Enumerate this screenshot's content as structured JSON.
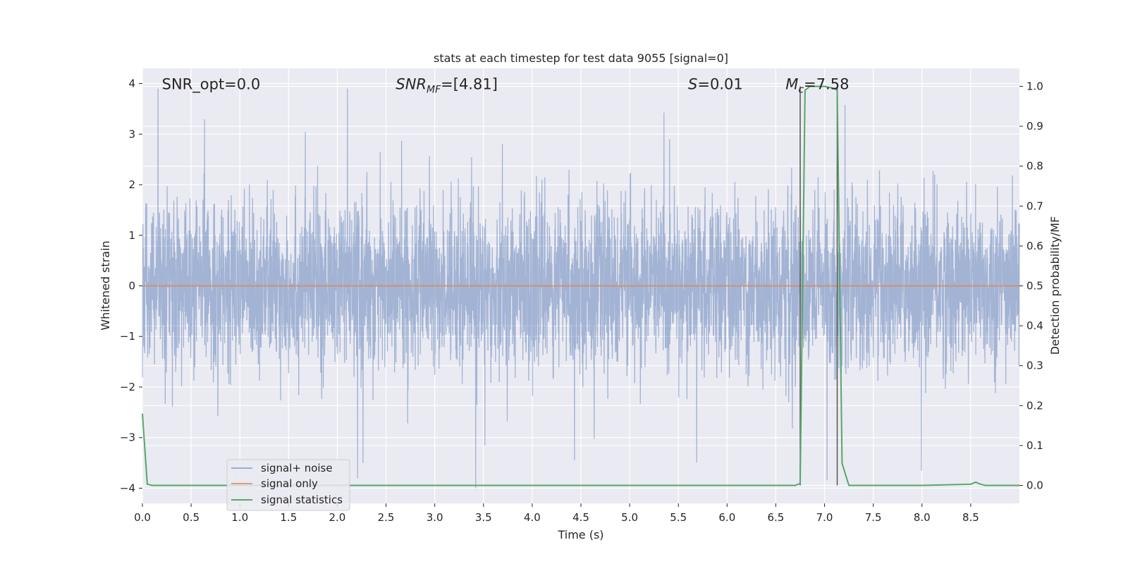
{
  "chart_data": {
    "type": "line",
    "title": "stats at each timestep for test data 9055 [signal=0]",
    "xlabel": "Time (s)",
    "ylabel_left": "Whitened strain",
    "ylabel_right": "Detection probability/MF",
    "xlim": [
      0.0,
      9.0
    ],
    "ylim_left": [
      -4.3,
      4.3
    ],
    "ylim_right": [
      -0.045,
      1.045
    ],
    "x_ticks": [
      "0.0",
      "0.5",
      "1.0",
      "1.5",
      "2.0",
      "2.5",
      "3.0",
      "3.5",
      "4.0",
      "4.5",
      "5.0",
      "5.5",
      "6.0",
      "6.5",
      "7.0",
      "7.5",
      "8.0",
      "8.5"
    ],
    "y_left_ticks": [
      "−4",
      "−3",
      "−2",
      "−1",
      "0",
      "1",
      "2",
      "3",
      "4"
    ],
    "y_right_ticks": [
      "0.0",
      "0.1",
      "0.2",
      "0.3",
      "0.4",
      "0.5",
      "0.6",
      "0.7",
      "0.8",
      "0.9",
      "1.0"
    ],
    "grid": true,
    "annotations": [
      {
        "text": "SNR_opt=0.0",
        "x": 0.2,
        "y": 4.0
      },
      {
        "text": "SNR_MF=[4.81]",
        "x": 2.6,
        "y": 4.0
      },
      {
        "text": "S=0.01",
        "x": 5.6,
        "y": 4.0
      },
      {
        "text": "M_c=7.58",
        "x": 6.6,
        "y": 4.0
      }
    ],
    "legend_position": "lower-left",
    "vertical_lines": [
      6.75,
      7.13
    ],
    "series": [
      {
        "name": "signal+ noise",
        "color": "#4c72b0",
        "axis": "left",
        "description": "whitened noisy strain, roughly within ±2.3 with spikes to about 3.9 and down to −4.0",
        "noise_amplitude": 1.0
      },
      {
        "name": "signal only",
        "color": "#dd8452",
        "axis": "left",
        "x": [
          0.0,
          9.0
        ],
        "y": [
          0.0,
          0.0
        ]
      },
      {
        "name": "signal statistics",
        "color": "#55a868",
        "axis": "right",
        "x": [
          0.0,
          0.05,
          0.1,
          0.5,
          1.0,
          2.0,
          3.0,
          4.0,
          5.0,
          6.0,
          6.5,
          6.7,
          6.75,
          6.8,
          6.85,
          6.9,
          7.0,
          7.1,
          7.13,
          7.18,
          7.25,
          7.5,
          8.0,
          8.5,
          8.55,
          8.6,
          8.65,
          9.0
        ],
        "y": [
          0.18,
          0.003,
          0.0,
          0.0,
          0.0,
          0.0,
          0.0,
          0.0,
          0.0,
          0.0,
          0.0,
          0.0,
          0.005,
          0.99,
          1.0,
          1.0,
          1.0,
          0.995,
          0.99,
          0.055,
          0.0,
          0.0,
          0.0,
          0.003,
          0.008,
          0.003,
          0.0,
          0.0
        ]
      }
    ]
  }
}
